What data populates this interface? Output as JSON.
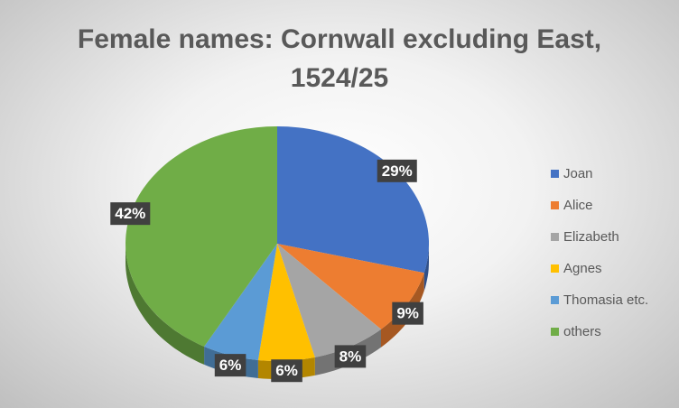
{
  "chart_data": {
    "type": "pie",
    "title": "Female names: Cornwall excluding East, 1524/25",
    "categories": [
      "Joan",
      "Alice",
      "Elizabeth",
      "Agnes",
      "Thomasia etc.",
      "others"
    ],
    "values": [
      29,
      9,
      8,
      6,
      6,
      42
    ],
    "value_labels": [
      "29%",
      "9%",
      "8%",
      "6%",
      "6%",
      "42%"
    ],
    "colors": [
      "#4472c4",
      "#ed7d31",
      "#a5a5a5",
      "#ffc000",
      "#5b9bd5",
      "#70ad47"
    ],
    "legend": "right"
  }
}
